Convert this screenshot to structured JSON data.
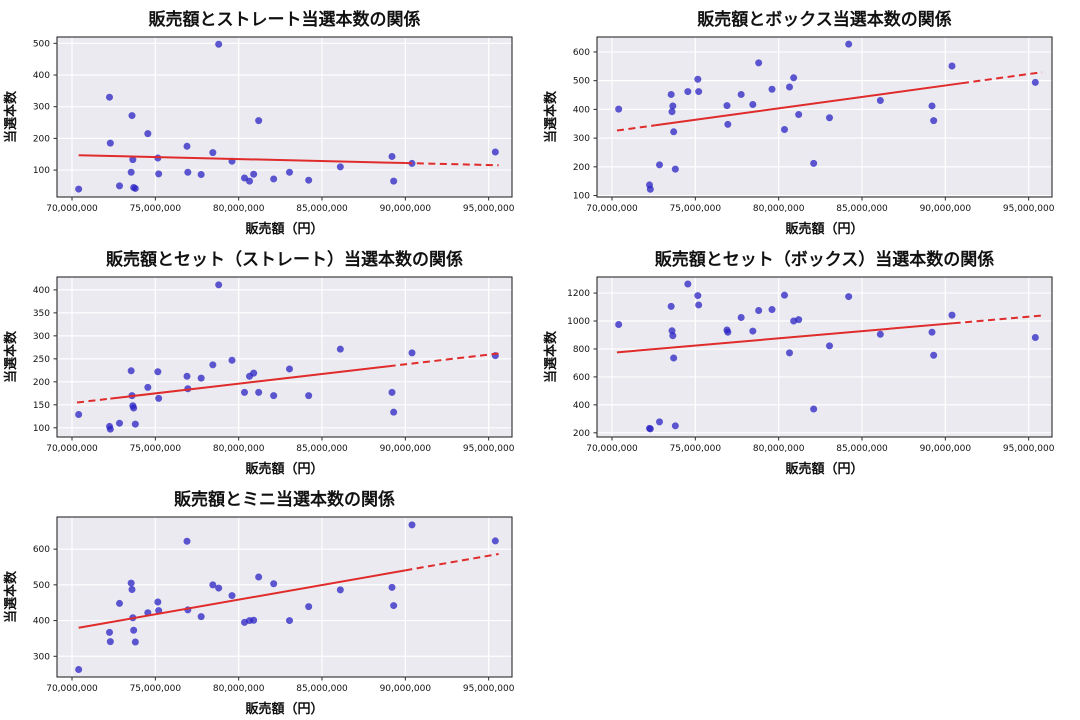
{
  "style": {
    "figure_background": "#ffffff",
    "plot_background": "#eaeaf0",
    "grid_color": "#ffffff",
    "spine_color": "#2b2b2b",
    "tick_color": "#2b2b2b",
    "point_color": "#2a22c4",
    "point_opacity": 0.75,
    "trend_color": "#e02b2b"
  },
  "axes": {
    "xlabel": "販売額（円）",
    "ylabel": "当選本数",
    "xlim": [
      69100000,
      96400000
    ],
    "x_ticks": [
      70000000,
      75000000,
      80000000,
      85000000,
      90000000,
      95000000
    ],
    "x_tick_labels": [
      "70,000,000",
      "75,000,000",
      "80,000,000",
      "85,000,000",
      "90,000,000",
      "95,000,000"
    ]
  },
  "chart_data": [
    {
      "id": "straight",
      "type": "scatter",
      "title": "販売額とストレート当選本数の関係",
      "xlabel": "販売額（円）",
      "ylabel": "当選本数",
      "ylim": [
        15,
        520
      ],
      "y_ticks": [
        100,
        200,
        300,
        400,
        500
      ],
      "points": [
        [
          70400000,
          40
        ],
        [
          72250000,
          330
        ],
        [
          72300000,
          185
        ],
        [
          72850000,
          50
        ],
        [
          73550000,
          93
        ],
        [
          73600000,
          272
        ],
        [
          73650000,
          133
        ],
        [
          73700000,
          45
        ],
        [
          73800000,
          42
        ],
        [
          74550000,
          215
        ],
        [
          75150000,
          138
        ],
        [
          75200000,
          88
        ],
        [
          76900000,
          175
        ],
        [
          76950000,
          93
        ],
        [
          77750000,
          86
        ],
        [
          78450000,
          155
        ],
        [
          78800000,
          497
        ],
        [
          79600000,
          128
        ],
        [
          80350000,
          75
        ],
        [
          80650000,
          65
        ],
        [
          80900000,
          87
        ],
        [
          81200000,
          256
        ],
        [
          82100000,
          72
        ],
        [
          83050000,
          93
        ],
        [
          84200000,
          68
        ],
        [
          86100000,
          110
        ],
        [
          89200000,
          143
        ],
        [
          89300000,
          65
        ],
        [
          90400000,
          121
        ],
        [
          95400000,
          157
        ]
      ],
      "trend": {
        "fit": "linear",
        "solid_range": [
          70400000,
          90000000
        ],
        "dashed_ranges": [
          [
            90000000,
            95600000
          ]
        ]
      }
    },
    {
      "id": "box",
      "type": "scatter",
      "title": "販売額とボックス当選本数の関係",
      "xlabel": "販売額（円）",
      "ylabel": "当選本数",
      "ylim": [
        95,
        652
      ],
      "y_ticks": [
        100,
        200,
        300,
        400,
        500,
        600
      ],
      "points": [
        [
          70400000,
          401
        ],
        [
          72250000,
          137
        ],
        [
          72300000,
          122
        ],
        [
          72850000,
          207
        ],
        [
          73550000,
          452
        ],
        [
          73600000,
          392
        ],
        [
          73650000,
          412
        ],
        [
          73700000,
          322
        ],
        [
          73800000,
          192
        ],
        [
          74550000,
          462
        ],
        [
          75150000,
          505
        ],
        [
          75200000,
          462
        ],
        [
          76900000,
          413
        ],
        [
          76950000,
          348
        ],
        [
          77750000,
          452
        ],
        [
          78450000,
          417
        ],
        [
          78800000,
          562
        ],
        [
          79600000,
          470
        ],
        [
          80350000,
          330
        ],
        [
          80650000,
          478
        ],
        [
          80900000,
          510
        ],
        [
          81200000,
          382
        ],
        [
          82100000,
          212
        ],
        [
          83050000,
          371
        ],
        [
          84200000,
          627
        ],
        [
          86100000,
          431
        ],
        [
          89200000,
          412
        ],
        [
          89300000,
          361
        ],
        [
          90400000,
          551
        ],
        [
          95400000,
          494
        ]
      ],
      "trend": {
        "fit": "linear",
        "solid_range": [
          72600000,
          91000000
        ],
        "dashed_ranges": [
          [
            70300000,
            72600000
          ],
          [
            91000000,
            95800000
          ]
        ]
      }
    },
    {
      "id": "set-straight",
      "type": "scatter",
      "title": "販売額とセット（ストレート）当選本数の関係",
      "xlabel": "販売額（円）",
      "ylabel": "当選本数",
      "ylim": [
        80,
        428
      ],
      "y_ticks": [
        100,
        150,
        200,
        250,
        300,
        350,
        400
      ],
      "points": [
        [
          70400000,
          129
        ],
        [
          72250000,
          103
        ],
        [
          72300000,
          97
        ],
        [
          72850000,
          110
        ],
        [
          73550000,
          224
        ],
        [
          73600000,
          170
        ],
        [
          73650000,
          148
        ],
        [
          73700000,
          143
        ],
        [
          73800000,
          108
        ],
        [
          74550000,
          188
        ],
        [
          75150000,
          222
        ],
        [
          75200000,
          164
        ],
        [
          76900000,
          212
        ],
        [
          76950000,
          185
        ],
        [
          77750000,
          208
        ],
        [
          78450000,
          237
        ],
        [
          78800000,
          411
        ],
        [
          79600000,
          247
        ],
        [
          80350000,
          177
        ],
        [
          80650000,
          212
        ],
        [
          80900000,
          219
        ],
        [
          81200000,
          177
        ],
        [
          82100000,
          170
        ],
        [
          83050000,
          228
        ],
        [
          84200000,
          170
        ],
        [
          86100000,
          271
        ],
        [
          89200000,
          177
        ],
        [
          89300000,
          134
        ],
        [
          90400000,
          263
        ],
        [
          95400000,
          257
        ]
      ],
      "trend": {
        "fit": "linear",
        "solid_range": [
          72300000,
          89000000
        ],
        "dashed_ranges": [
          [
            70300000,
            72300000
          ],
          [
            89000000,
            95700000
          ]
        ]
      }
    },
    {
      "id": "set-box",
      "type": "scatter",
      "title": "販売額とセット（ボックス）当選本数の関係",
      "xlabel": "販売額（円）",
      "ylabel": "当選本数",
      "ylim": [
        170,
        1315
      ],
      "y_ticks": [
        200,
        400,
        600,
        800,
        1000,
        1200
      ],
      "points": [
        [
          70400000,
          975
        ],
        [
          72250000,
          232
        ],
        [
          72300000,
          228
        ],
        [
          72850000,
          278
        ],
        [
          73550000,
          1105
        ],
        [
          73600000,
          930
        ],
        [
          73650000,
          895
        ],
        [
          73700000,
          735
        ],
        [
          73800000,
          250
        ],
        [
          74550000,
          1265
        ],
        [
          75150000,
          1182
        ],
        [
          75200000,
          1115
        ],
        [
          76900000,
          936
        ],
        [
          76950000,
          920
        ],
        [
          77750000,
          1025
        ],
        [
          78450000,
          928
        ],
        [
          78800000,
          1075
        ],
        [
          79600000,
          1082
        ],
        [
          80350000,
          1185
        ],
        [
          80650000,
          772
        ],
        [
          80900000,
          1000
        ],
        [
          81200000,
          1010
        ],
        [
          82100000,
          370
        ],
        [
          83050000,
          822
        ],
        [
          84200000,
          1175
        ],
        [
          86100000,
          905
        ],
        [
          89200000,
          920
        ],
        [
          89300000,
          755
        ],
        [
          90400000,
          1042
        ],
        [
          95400000,
          882
        ]
      ],
      "trend": {
        "fit": "linear",
        "solid_range": [
          70300000,
          90500000
        ],
        "dashed_ranges": [
          [
            90500000,
            95800000
          ]
        ]
      }
    },
    {
      "id": "mini",
      "type": "scatter",
      "title": "販売額とミニ当選本数の関係",
      "xlabel": "販売額（円）",
      "ylabel": "当選本数",
      "ylim": [
        242,
        690
      ],
      "y_ticks": [
        300,
        400,
        500,
        600
      ],
      "points": [
        [
          70400000,
          263
        ],
        [
          72250000,
          367
        ],
        [
          72300000,
          341
        ],
        [
          72850000,
          448
        ],
        [
          73550000,
          505
        ],
        [
          73600000,
          487
        ],
        [
          73650000,
          408
        ],
        [
          73700000,
          373
        ],
        [
          73800000,
          340
        ],
        [
          74550000,
          422
        ],
        [
          75150000,
          452
        ],
        [
          75200000,
          428
        ],
        [
          76900000,
          622
        ],
        [
          76950000,
          430
        ],
        [
          77750000,
          411
        ],
        [
          78450000,
          500
        ],
        [
          78800000,
          491
        ],
        [
          79600000,
          470
        ],
        [
          80350000,
          395
        ],
        [
          80650000,
          400
        ],
        [
          80900000,
          401
        ],
        [
          81200000,
          522
        ],
        [
          82100000,
          503
        ],
        [
          83050000,
          400
        ],
        [
          84200000,
          439
        ],
        [
          86100000,
          486
        ],
        [
          89200000,
          493
        ],
        [
          89300000,
          442
        ],
        [
          90400000,
          668
        ],
        [
          95400000,
          623
        ]
      ],
      "trend": {
        "fit": "linear",
        "solid_range": [
          70400000,
          90000000
        ],
        "dashed_ranges": [
          [
            90000000,
            95600000
          ]
        ]
      }
    }
  ]
}
